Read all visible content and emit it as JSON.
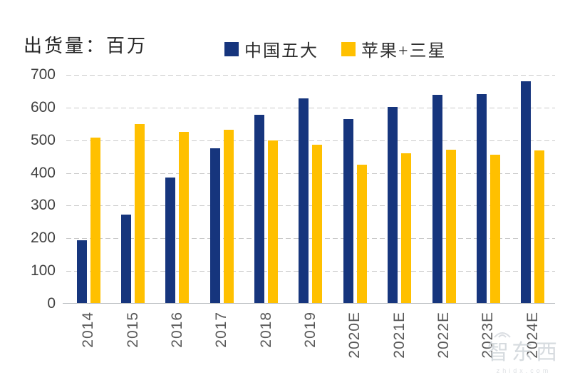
{
  "header": {
    "title": "出货量：百万",
    "legend": [
      {
        "label": "中国五大",
        "color": "#16357d"
      },
      {
        "label": "苹果+三星",
        "color": "#ffc000"
      }
    ]
  },
  "chart_data": {
    "type": "bar",
    "title": "出货量：百万",
    "categories": [
      "2014",
      "2015",
      "2016",
      "2017",
      "2018",
      "2019",
      "2020E",
      "2021E",
      "2022E",
      "2023E",
      "2024E"
    ],
    "series": [
      {
        "name": "中国五大",
        "color": "#16357d",
        "values": [
          195,
          272,
          385,
          475,
          578,
          628,
          565,
          602,
          640,
          641,
          680
        ]
      },
      {
        "name": "苹果+三星",
        "color": "#ffc000",
        "values": [
          508,
          550,
          525,
          532,
          500,
          486,
          425,
          460,
          470,
          455,
          468
        ]
      }
    ],
    "xlabel": "",
    "ylabel": "",
    "ylim": [
      0,
      700
    ],
    "ytick_step": 100,
    "grid": "horizontal-dashed",
    "legend_position": "top"
  },
  "watermark": {
    "text": "智东西",
    "subtext": "zhidx.com"
  },
  "colors": {
    "grid": "#c9c9c9",
    "axis": "#b9bdc1",
    "ytick_text": "#404040",
    "xtick_text": "#595959",
    "title_text": "#262626",
    "watermark_text": "#d0d5da"
  }
}
